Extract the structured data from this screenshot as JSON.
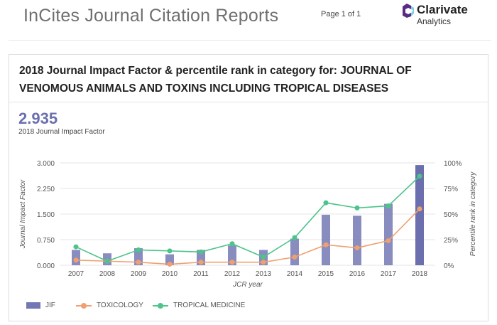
{
  "header": {
    "app_title": "InCites Journal Citation Reports",
    "page_indicator": "Page 1 of 1",
    "brand_name": "Clarivate",
    "brand_sub": "Analytics"
  },
  "card": {
    "title": "2018 Journal Impact Factor & percentile rank in category for: JOURNAL OF VENOMOUS ANIMALS AND TOXINS INCLUDING TROPICAL DISEASES",
    "jif_value": "2.935",
    "jif_label": "2018 Journal Impact Factor"
  },
  "colors": {
    "jif_bar": "#7378b4",
    "jif_bar_2018": "#6b6fae",
    "toxicology": "#f0a070",
    "tropical_medicine": "#4cc48a"
  },
  "chart_data": {
    "type": "bar",
    "categories": [
      "2007",
      "2008",
      "2009",
      "2010",
      "2011",
      "2012",
      "2013",
      "2014",
      "2015",
      "2016",
      "2017",
      "2018"
    ],
    "xlabel": "JCR year",
    "ylabel": "Journal Impact Factor",
    "y2label": "Percentile rank in category",
    "ylim": [
      0,
      3
    ],
    "y2lim": [
      0,
      100
    ],
    "y_ticks": [
      "0.000",
      "0.750",
      "1.500",
      "2.250",
      "3.000"
    ],
    "y2_ticks": [
      "0%",
      "25%",
      "50%",
      "75%",
      "100%"
    ],
    "grid": true,
    "legend_position": "bottom-left",
    "series": [
      {
        "name": "JIF",
        "type": "bar",
        "axis": "left",
        "values": [
          0.45,
          0.35,
          0.5,
          0.32,
          0.45,
          0.58,
          0.45,
          0.78,
          1.48,
          1.45,
          1.8,
          2.935
        ]
      },
      {
        "name": "TOXICOLOGY",
        "type": "line",
        "axis": "right",
        "values": [
          5,
          4,
          3,
          1,
          3,
          3,
          3,
          8,
          20,
          17,
          24,
          55
        ]
      },
      {
        "name": "TROPICAL MEDICINE",
        "type": "line",
        "axis": "right",
        "values": [
          18,
          4,
          15,
          14,
          13,
          21,
          8,
          27,
          61,
          56,
          58,
          87
        ]
      }
    ]
  }
}
